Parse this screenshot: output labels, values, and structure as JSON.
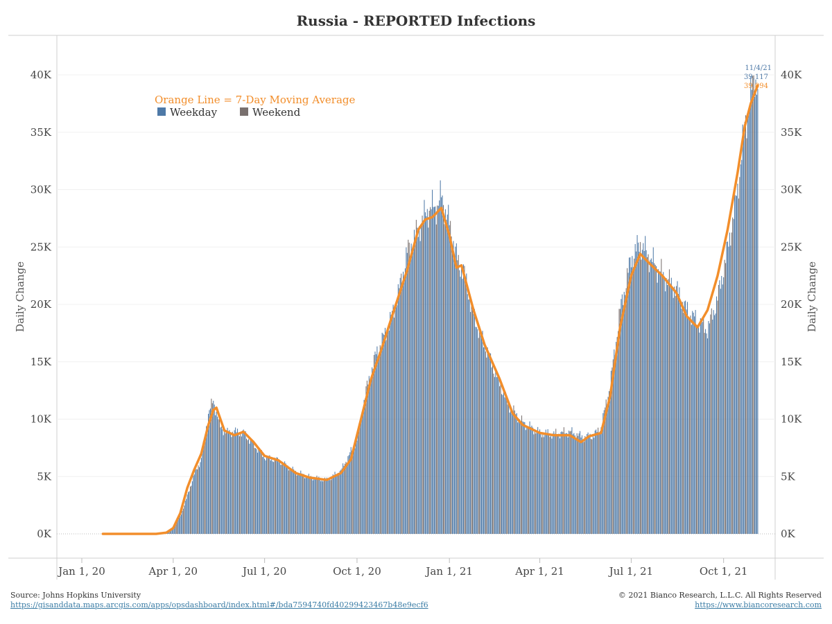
{
  "chart_data": {
    "type": "bar",
    "title": "Russia - REPORTED Infections",
    "ylabel": "Daily Change",
    "ylabel_right": "Daily Change",
    "xlabel": "",
    "ylim": [
      0,
      43000
    ],
    "y_ticks": [
      0,
      5000,
      10000,
      15000,
      20000,
      25000,
      30000,
      35000,
      40000
    ],
    "y_tick_labels": [
      "0K",
      "5K",
      "10K",
      "15K",
      "20K",
      "25K",
      "30K",
      "35K",
      "40K"
    ],
    "x_range": [
      "2020-01-22",
      "2021-11-04"
    ],
    "x_ticks": [
      "2020-01-01",
      "2020-04-01",
      "2020-07-01",
      "2020-10-01",
      "2021-01-01",
      "2021-04-01",
      "2021-07-01",
      "2021-10-01"
    ],
    "x_tick_labels": [
      "Jan 1, 20",
      "Apr 1, 20",
      "Jul 1, 20",
      "Oct 1, 20",
      "Jan 1, 21",
      "Apr 1, 21",
      "Jul 1, 21",
      "Oct 1, 21"
    ],
    "grid": true,
    "legend": {
      "placement": "top-left",
      "note": "Orange Line = 7-Day Moving Average",
      "entries": [
        {
          "label": "Weekday",
          "color": "#4e79a7"
        },
        {
          "label": "Weekend",
          "color": "#79706e"
        }
      ]
    },
    "series": [
      {
        "name": "Weekday",
        "kind": "bar",
        "color": "#4e79a7",
        "points": [
          [
            "2020-01-22",
            0
          ],
          [
            "2020-03-01",
            0
          ],
          [
            "2020-03-15",
            30
          ],
          [
            "2020-03-25",
            200
          ],
          [
            "2020-04-01",
            600
          ],
          [
            "2020-04-08",
            1500
          ],
          [
            "2020-04-15",
            3300
          ],
          [
            "2020-04-22",
            5200
          ],
          [
            "2020-04-29",
            6500
          ],
          [
            "2020-05-06",
            10500
          ],
          [
            "2020-05-11",
            11600
          ],
          [
            "2020-05-18",
            9300
          ],
          [
            "2020-05-25",
            8800
          ],
          [
            "2020-06-01",
            8900
          ],
          [
            "2020-06-10",
            8800
          ],
          [
            "2020-06-20",
            7800
          ],
          [
            "2020-07-01",
            6700
          ],
          [
            "2020-07-15",
            6400
          ],
          [
            "2020-08-01",
            5400
          ],
          [
            "2020-08-15",
            4950
          ],
          [
            "2020-09-01",
            4700
          ],
          [
            "2020-09-15",
            5500
          ],
          [
            "2020-10-01",
            8200
          ],
          [
            "2020-10-10",
            12500
          ],
          [
            "2020-10-20",
            15700
          ],
          [
            "2020-11-01",
            18000
          ],
          [
            "2020-11-10",
            20500
          ],
          [
            "2020-11-20",
            24500
          ],
          [
            "2020-12-01",
            26500
          ],
          [
            "2020-12-10",
            28200
          ],
          [
            "2020-12-20",
            28600
          ],
          [
            "2020-12-24",
            29400
          ],
          [
            "2021-01-01",
            27000
          ],
          [
            "2021-01-10",
            23500
          ],
          [
            "2021-01-15",
            23000
          ],
          [
            "2021-01-25",
            19000
          ],
          [
            "2021-02-05",
            16500
          ],
          [
            "2021-02-15",
            14200
          ],
          [
            "2021-03-01",
            11200
          ],
          [
            "2021-03-15",
            9700
          ],
          [
            "2021-04-01",
            8800
          ],
          [
            "2021-04-15",
            8700
          ],
          [
            "2021-05-01",
            8900
          ],
          [
            "2021-05-15",
            8400
          ],
          [
            "2021-05-25",
            8600
          ],
          [
            "2021-06-01",
            9300
          ],
          [
            "2021-06-10",
            13000
          ],
          [
            "2021-06-20",
            19500
          ],
          [
            "2021-07-01",
            24000
          ],
          [
            "2021-07-10",
            25300
          ],
          [
            "2021-07-20",
            24000
          ],
          [
            "2021-08-01",
            22600
          ],
          [
            "2021-08-15",
            21300
          ],
          [
            "2021-08-25",
            19500
          ],
          [
            "2021-09-05",
            18500
          ],
          [
            "2021-09-15",
            17800
          ],
          [
            "2021-09-25",
            20500
          ],
          [
            "2021-10-05",
            24800
          ],
          [
            "2021-10-15",
            30000
          ],
          [
            "2021-10-22",
            35500
          ],
          [
            "2021-10-28",
            38000
          ],
          [
            "2021-11-01",
            40000
          ],
          [
            "2021-11-04",
            39117
          ]
        ]
      },
      {
        "name": "7-Day Moving Average",
        "kind": "line",
        "color": "#f28e2b",
        "points": [
          [
            "2020-01-22",
            0
          ],
          [
            "2020-03-15",
            0
          ],
          [
            "2020-03-25",
            100
          ],
          [
            "2020-04-01",
            500
          ],
          [
            "2020-04-08",
            1800
          ],
          [
            "2020-04-15",
            4000
          ],
          [
            "2020-04-22",
            5600
          ],
          [
            "2020-04-29",
            7000
          ],
          [
            "2020-05-06",
            9500
          ],
          [
            "2020-05-11",
            10800
          ],
          [
            "2020-05-14",
            11000
          ],
          [
            "2020-05-22",
            9000
          ],
          [
            "2020-06-01",
            8600
          ],
          [
            "2020-06-10",
            8900
          ],
          [
            "2020-06-20",
            8000
          ],
          [
            "2020-07-01",
            6800
          ],
          [
            "2020-07-15",
            6400
          ],
          [
            "2020-08-01",
            5300
          ],
          [
            "2020-08-15",
            4900
          ],
          [
            "2020-09-01",
            4700
          ],
          [
            "2020-09-15",
            5300
          ],
          [
            "2020-09-25",
            6500
          ],
          [
            "2020-10-05",
            10000
          ],
          [
            "2020-10-15",
            13500
          ],
          [
            "2020-10-25",
            16000
          ],
          [
            "2020-11-05",
            19000
          ],
          [
            "2020-11-20",
            23000
          ],
          [
            "2020-12-01",
            26500
          ],
          [
            "2020-12-08",
            27400
          ],
          [
            "2020-12-15",
            27600
          ],
          [
            "2020-12-24",
            28400
          ],
          [
            "2021-01-01",
            26000
          ],
          [
            "2021-01-08",
            23200
          ],
          [
            "2021-01-13",
            23400
          ],
          [
            "2021-01-25",
            19500
          ],
          [
            "2021-02-05",
            16500
          ],
          [
            "2021-02-20",
            13500
          ],
          [
            "2021-03-05",
            10500
          ],
          [
            "2021-03-15",
            9500
          ],
          [
            "2021-04-01",
            8800
          ],
          [
            "2021-04-15",
            8600
          ],
          [
            "2021-05-01",
            8600
          ],
          [
            "2021-05-12",
            8000
          ],
          [
            "2021-05-20",
            8500
          ],
          [
            "2021-06-01",
            8800
          ],
          [
            "2021-06-10",
            12000
          ],
          [
            "2021-06-20",
            18000
          ],
          [
            "2021-07-01",
            22500
          ],
          [
            "2021-07-10",
            24400
          ],
          [
            "2021-07-20",
            23500
          ],
          [
            "2021-08-01",
            22500
          ],
          [
            "2021-08-15",
            21000
          ],
          [
            "2021-08-25",
            19000
          ],
          [
            "2021-09-05",
            18000
          ],
          [
            "2021-09-15",
            19500
          ],
          [
            "2021-09-25",
            22500
          ],
          [
            "2021-10-05",
            26500
          ],
          [
            "2021-10-15",
            31500
          ],
          [
            "2021-10-22",
            35500
          ],
          [
            "2021-10-28",
            37500
          ],
          [
            "2021-11-04",
            39094
          ]
        ]
      }
    ],
    "annotations": [
      {
        "text": "11/4/21",
        "color": "#4e79a7"
      },
      {
        "text": "39,117",
        "color": "#4e79a7"
      },
      {
        "text": "39,094",
        "color": "#f28e2b"
      }
    ]
  },
  "footer": {
    "source": "Source: Johns Hopkins University",
    "source_url": "https://gisanddata.maps.arcgis.com/apps/opsdashboard/index.html#/bda7594740fd40299423467b48e9ecf6",
    "copyright": "© 2021 Bianco Research, L.L.C. All Rights Reserved",
    "site_url": "https://www.biancoresearch.com"
  }
}
